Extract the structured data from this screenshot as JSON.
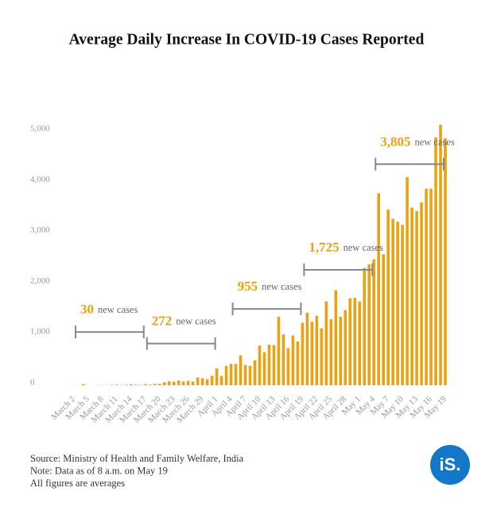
{
  "chart_data": {
    "type": "bar",
    "title": "Average Daily Increase In COVID-19 Cases Reported",
    "categories": [
      "March 2",
      null,
      null,
      "March 5",
      null,
      null,
      "March 8",
      null,
      null,
      "March 11",
      null,
      null,
      "March 14",
      null,
      null,
      "March 17",
      null,
      null,
      "March 20",
      null,
      null,
      "March 23",
      null,
      null,
      "March 26",
      null,
      null,
      "March 29",
      null,
      null,
      "April 1",
      null,
      null,
      "April 4",
      null,
      null,
      "April 7",
      null,
      null,
      "April 10",
      null,
      null,
      "April 13",
      null,
      null,
      "April 16",
      null,
      null,
      "April 19",
      null,
      null,
      "April 22",
      null,
      null,
      "April 25",
      null,
      null,
      "April 28",
      null,
      null,
      "May 1",
      null,
      null,
      "May 4",
      null,
      null,
      "May 7",
      null,
      null,
      "May 10",
      null,
      null,
      "May 13",
      null,
      null,
      "May 16",
      null,
      null,
      "May 19"
    ],
    "values": [
      2,
      1,
      22,
      2,
      1,
      3,
      5,
      4,
      9,
      12,
      6,
      10,
      20,
      11,
      6,
      23,
      14,
      25,
      27,
      58,
      78,
      69,
      94,
      74,
      86,
      73,
      153,
      136,
      120,
      187,
      330,
      180,
      380,
      420,
      420,
      590,
      400,
      380,
      490,
      780,
      650,
      800,
      790,
      1350,
      1000,
      730,
      980,
      860,
      1230,
      1430,
      1250,
      1370,
      1120,
      1650,
      1300,
      1870,
      1350,
      1480,
      1710,
      1720,
      1650,
      2310,
      2380,
      2480,
      3780,
      2580,
      3460,
      3280,
      3220,
      3160,
      4100,
      3500,
      3430,
      3600,
      3870,
      3870,
      4880,
      5130,
      4860
    ],
    "color": "#e9a212",
    "ylim": [
      0,
      5400
    ],
    "yticks": [
      0,
      {
        "value": 1000,
        "label": "1,000"
      },
      {
        "value": 2000,
        "label": "2,000"
      },
      {
        "value": 3000,
        "label": "3,000"
      },
      {
        "value": 4000,
        "label": "4,000"
      },
      {
        "value": 5000,
        "label": "5,000"
      }
    ],
    "annotations": [
      {
        "value": 30,
        "text": "new cases",
        "from": "March 2",
        "to": "March 17"
      },
      {
        "value": 272,
        "text": "new cases",
        "from": "March 17",
        "to": "April 1"
      },
      {
        "value": 955,
        "text": "new cases",
        "from": "April 4",
        "to": "April 19"
      },
      {
        "value": 1725,
        "label": "1,725",
        "text": "new cases",
        "from": "April 19",
        "to": "May 4"
      },
      {
        "value": 3805,
        "label": "3,805",
        "text": "new cases",
        "from": "May 4",
        "to": "May 19"
      }
    ],
    "footnotes": [
      "Source: Ministry of Health and Family Welfare, India",
      "Note: Data as of 8 a.m. on May 19",
      "All figures are averages"
    ],
    "logo": "iS."
  }
}
